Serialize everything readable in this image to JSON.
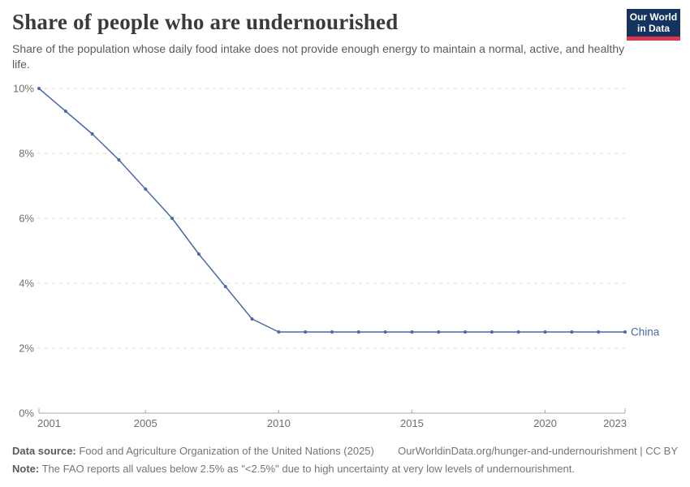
{
  "header": {
    "logo_line1": "Our World",
    "logo_line2": "in Data"
  },
  "chart_data": {
    "type": "line",
    "title": "Share of people who are undernourished",
    "subtitle": "Share of the population whose daily food intake does not provide enough energy to maintain a normal, active, and healthy life.",
    "series": [
      {
        "name": "China",
        "color": "#4a69a8",
        "x": [
          2001,
          2002,
          2003,
          2004,
          2005,
          2006,
          2007,
          2008,
          2009,
          2010,
          2011,
          2012,
          2013,
          2014,
          2015,
          2016,
          2017,
          2018,
          2019,
          2020,
          2021,
          2022,
          2023
        ],
        "values": [
          10,
          9.3,
          8.6,
          7.8,
          6.9,
          6,
          4.9,
          3.9,
          2.9,
          2.5,
          2.5,
          2.5,
          2.5,
          2.5,
          2.5,
          2.5,
          2.5,
          2.5,
          2.5,
          2.5,
          2.5,
          2.5,
          2.5
        ]
      }
    ],
    "xlabel": "",
    "ylabel": "",
    "xlim": [
      2001,
      2023
    ],
    "ylim": [
      0,
      10
    ],
    "xticks": [
      2001,
      2005,
      2010,
      2015,
      2020,
      2023
    ],
    "yticks": [
      0,
      2,
      4,
      6,
      8,
      10
    ],
    "ytick_suffix": "%",
    "grid": "horizontal-dashed",
    "legend_position": "end-of-line-label",
    "colors": {
      "grid": "#dcdcdc",
      "axis": "#a8a8a8",
      "tick_label": "#6e6e6e"
    }
  },
  "footer": {
    "datasource_label": "Data source:",
    "datasource_text": " Food and Agriculture Organization of the United Nations (2025)",
    "link_text": "OurWorldinData.org/hunger-and-undernourishment | CC BY",
    "note_label": "Note:",
    "note_text": " The FAO reports all values below 2.5% as \"<2.5%\" due to high uncertainty at very low levels of undernourishment."
  }
}
